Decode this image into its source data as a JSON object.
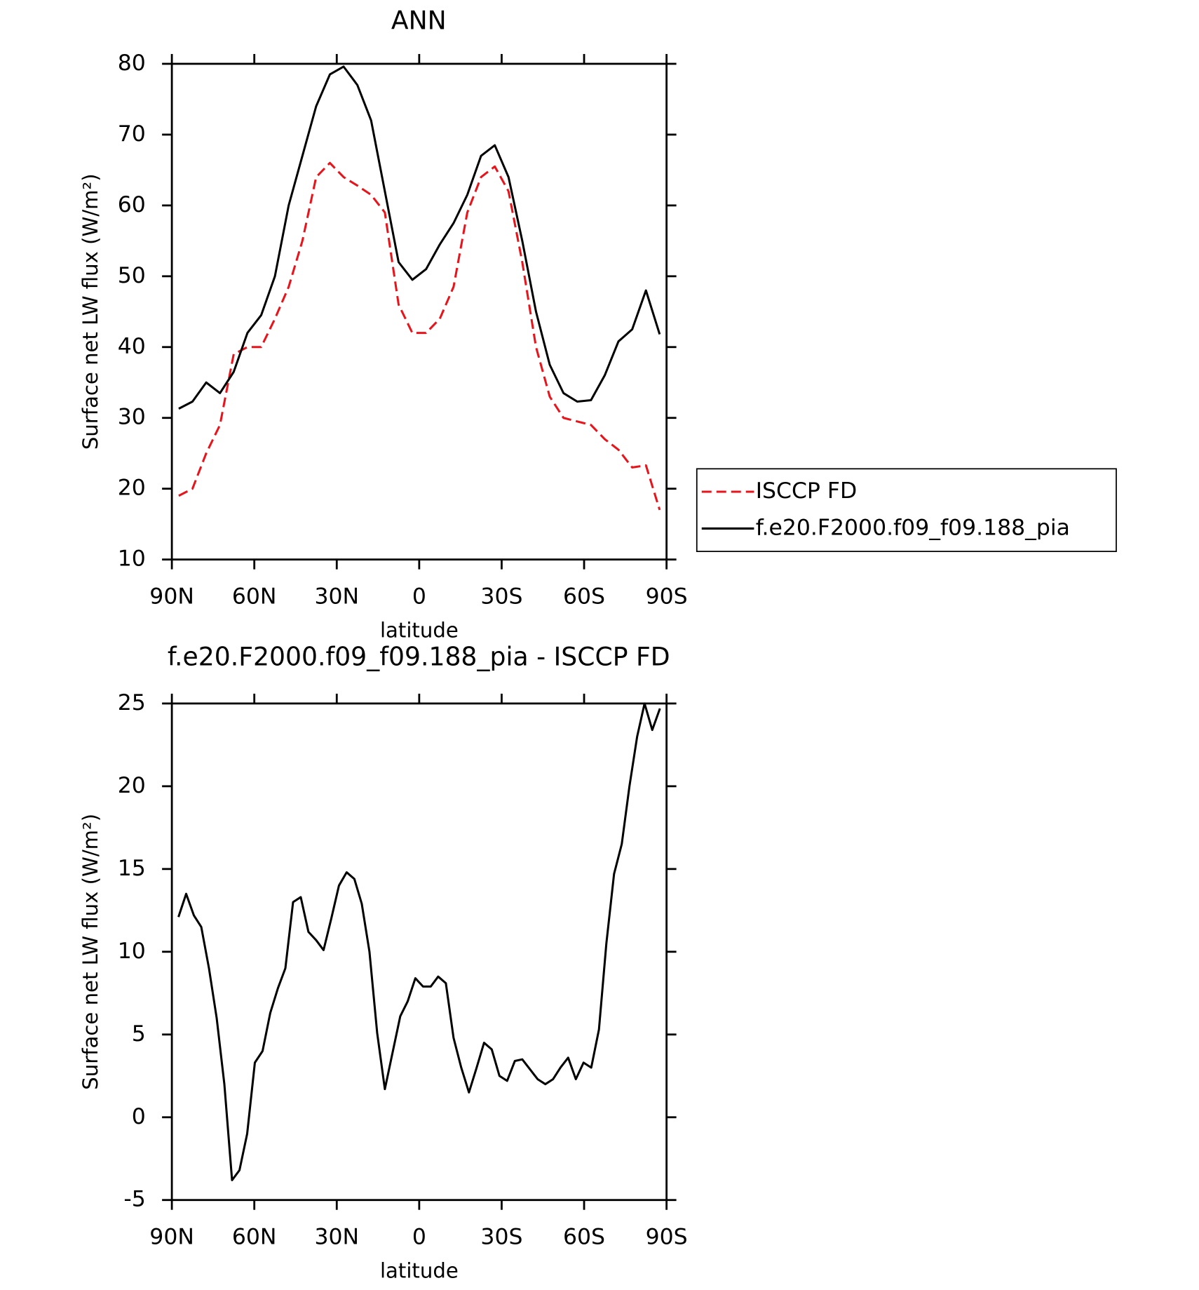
{
  "chart_data": [
    {
      "type": "line",
      "title": "ANN",
      "xlabel": "latitude",
      "ylabel": "Surface net LW flux (W/m²)",
      "x": [
        87.5,
        82.5,
        77.5,
        72.5,
        67.5,
        62.5,
        57.5,
        52.5,
        47.5,
        42.5,
        37.5,
        32.5,
        27.5,
        22.5,
        17.5,
        12.5,
        7.5,
        2.5,
        -2.5,
        -7.5,
        -12.5,
        -17.5,
        -22.5,
        -27.5,
        -32.5,
        -37.5,
        -42.5,
        -47.5,
        -52.5,
        -57.5,
        -62.5,
        -67.5,
        -72.5,
        -77.5,
        -82.5,
        -87.5
      ],
      "series": [
        {
          "name": "ISCCP FD",
          "color": "#e8141b",
          "dash": true,
          "values": [
            19,
            20,
            25,
            29,
            39,
            40,
            40,
            44,
            48.5,
            55,
            64,
            66,
            64,
            62.8,
            61.5,
            59,
            46,
            42,
            42,
            44,
            48.5,
            59,
            64,
            65.5,
            62,
            52,
            40,
            33,
            30,
            29.5,
            29,
            27,
            25.5,
            23,
            23.3,
            17
          ]
        },
        {
          "name": "f.e20.F2000.f09_f09.188_pia",
          "color": "#000000",
          "dash": false,
          "values": [
            31.3,
            32.3,
            35,
            33.5,
            36.5,
            42,
            44.5,
            50,
            60,
            67,
            74,
            78.5,
            79.6,
            77,
            72,
            62,
            52,
            49.5,
            51,
            54.5,
            57.5,
            61.5,
            67,
            68.5,
            64,
            55,
            45,
            37.5,
            33.5,
            32.3,
            32.5,
            36,
            40.8,
            42.5,
            48,
            41.8
          ]
        }
      ],
      "xlim": [
        90,
        -90
      ],
      "xticks": [
        {
          "value": 90,
          "label": "90N"
        },
        {
          "value": 60,
          "label": "60N"
        },
        {
          "value": 30,
          "label": "30N"
        },
        0,
        {
          "value": -30,
          "label": "30S"
        },
        {
          "value": -60,
          "label": "60S"
        },
        {
          "value": -90,
          "label": "90S"
        }
      ],
      "ylim": [
        10,
        80
      ],
      "yticks": [
        10,
        20,
        30,
        40,
        50,
        60,
        70,
        80
      ],
      "legend": "right"
    },
    {
      "type": "line",
      "title": "f.e20.F2000.f09_f09.188_pia - ISCCP FD",
      "xlabel": "latitude",
      "ylabel": "Surface net LW flux (W/m²)",
      "x": [
        87.6,
        84.8,
        82.0,
        79.3,
        76.5,
        73.7,
        70.9,
        68.1,
        65.4,
        62.6,
        59.8,
        57.0,
        54.2,
        51.4,
        48.7,
        45.9,
        43.1,
        40.3,
        37.5,
        34.8,
        32.0,
        29.2,
        26.4,
        23.6,
        20.9,
        18.1,
        15.3,
        12.5,
        9.7,
        6.9,
        4.2,
        1.4,
        -1.4,
        -4.2,
        -6.9,
        -9.7,
        -12.5,
        -15.3,
        -18.1,
        -20.9,
        -23.6,
        -26.4,
        -29.2,
        -32.0,
        -34.8,
        -37.5,
        -40.3,
        -43.1,
        -45.9,
        -48.7,
        -51.4,
        -54.2,
        -57.0,
        -59.8,
        -62.6,
        -65.4,
        -68.1,
        -70.9,
        -73.7,
        -76.5,
        -79.3,
        -82.0,
        -84.8,
        -87.6
      ],
      "series": [
        {
          "name": "f.e20.F2000.f09_f09.188_pia - ISCCP FD",
          "color": "#000000",
          "dash": false,
          "values": [
            12.1,
            13.5,
            12.2,
            11.5,
            9,
            6,
            2,
            -3.8,
            -3.2,
            -1,
            3.3,
            4,
            6.3,
            7.8,
            9,
            13,
            13.3,
            11.2,
            10.7,
            10.1,
            12,
            14,
            14.8,
            14.4,
            12.9,
            10,
            5.1,
            1.7,
            3.9,
            6.1,
            7,
            8.4,
            7.9,
            7.9,
            8.5,
            8.1,
            4.8,
            3,
            1.5,
            3,
            4.5,
            4.1,
            2.5,
            2.2,
            3.4,
            3.5,
            2.9,
            2.3,
            2,
            2.3,
            3,
            3.6,
            2.3,
            3.3,
            3,
            5.3,
            10.5,
            14.7,
            16.5,
            20,
            23,
            25,
            23.4,
            24.7
          ]
        }
      ],
      "xlim": [
        90,
        -90
      ],
      "xticks": [
        {
          "value": 90,
          "label": "90N"
        },
        {
          "value": 60,
          "label": "60N"
        },
        {
          "value": 30,
          "label": "30N"
        },
        0,
        {
          "value": -30,
          "label": "30S"
        },
        {
          "value": -60,
          "label": "60S"
        },
        {
          "value": -90,
          "label": "90S"
        }
      ],
      "ylim": [
        -5,
        25
      ],
      "yticks": [
        -5,
        0,
        5,
        10,
        15,
        20,
        25
      ]
    }
  ]
}
